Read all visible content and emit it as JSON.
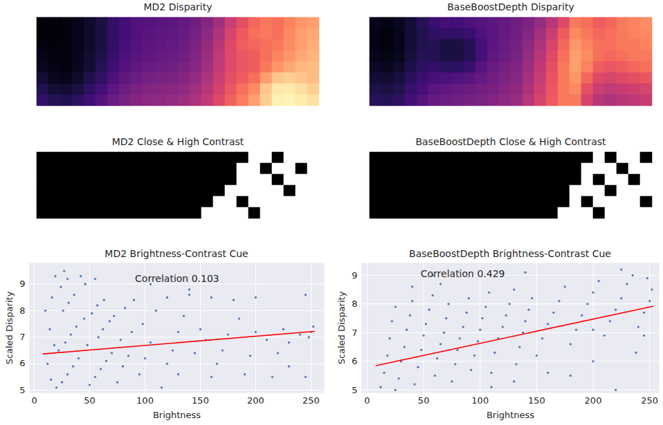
{
  "chart_data": [
    {
      "type": "heatmap",
      "title": "MD2 Disparity",
      "color": "magma",
      "zlim": [
        0,
        1
      ],
      "tick_labels": false,
      "z": [
        [
          0.02,
          0.02,
          0.03,
          0.05,
          0.08,
          0.12,
          0.18,
          0.22,
          0.25,
          0.26,
          0.27,
          0.28,
          0.3,
          0.33,
          0.38,
          0.45,
          0.55,
          0.62,
          0.68,
          0.72,
          0.7,
          0.74,
          0.78,
          0.8
        ],
        [
          0.02,
          0.02,
          0.03,
          0.05,
          0.08,
          0.12,
          0.18,
          0.22,
          0.25,
          0.27,
          0.28,
          0.29,
          0.31,
          0.34,
          0.4,
          0.48,
          0.58,
          0.65,
          0.7,
          0.72,
          0.7,
          0.75,
          0.8,
          0.82
        ],
        [
          0.03,
          0.02,
          0.03,
          0.05,
          0.08,
          0.12,
          0.18,
          0.23,
          0.26,
          0.28,
          0.29,
          0.3,
          0.32,
          0.36,
          0.42,
          0.5,
          0.6,
          0.66,
          0.68,
          0.7,
          0.72,
          0.76,
          0.8,
          0.83
        ],
        [
          0.04,
          0.03,
          0.03,
          0.05,
          0.09,
          0.13,
          0.19,
          0.24,
          0.27,
          0.29,
          0.3,
          0.31,
          0.33,
          0.37,
          0.43,
          0.52,
          0.6,
          0.64,
          0.66,
          0.7,
          0.74,
          0.78,
          0.82,
          0.84
        ],
        [
          0.06,
          0.04,
          0.03,
          0.06,
          0.1,
          0.15,
          0.21,
          0.26,
          0.29,
          0.31,
          0.32,
          0.33,
          0.35,
          0.39,
          0.45,
          0.53,
          0.6,
          0.64,
          0.66,
          0.72,
          0.78,
          0.82,
          0.85,
          0.86
        ],
        [
          0.1,
          0.06,
          0.05,
          0.08,
          0.13,
          0.18,
          0.24,
          0.29,
          0.32,
          0.34,
          0.35,
          0.36,
          0.38,
          0.42,
          0.48,
          0.55,
          0.62,
          0.66,
          0.7,
          0.8,
          0.88,
          0.9,
          0.88,
          0.86
        ],
        [
          0.14,
          0.1,
          0.09,
          0.12,
          0.17,
          0.22,
          0.28,
          0.32,
          0.35,
          0.37,
          0.38,
          0.39,
          0.41,
          0.45,
          0.5,
          0.57,
          0.64,
          0.7,
          0.76,
          0.88,
          0.95,
          0.96,
          0.93,
          0.9
        ],
        [
          0.18,
          0.15,
          0.14,
          0.17,
          0.21,
          0.26,
          0.31,
          0.35,
          0.38,
          0.4,
          0.41,
          0.42,
          0.44,
          0.48,
          0.53,
          0.6,
          0.67,
          0.73,
          0.8,
          0.9,
          0.97,
          0.98,
          0.96,
          0.94
        ]
      ]
    },
    {
      "type": "heatmap",
      "title": "BaseBoostDepth Disparity",
      "color": "magma",
      "zlim": [
        0,
        1
      ],
      "tick_labels": false,
      "z": [
        [
          0.05,
          0.04,
          0.06,
          0.1,
          0.15,
          0.2,
          0.22,
          0.22,
          0.24,
          0.26,
          0.28,
          0.3,
          0.33,
          0.36,
          0.42,
          0.5,
          0.6,
          0.72,
          0.7,
          0.66,
          0.68,
          0.72,
          0.74,
          0.76
        ],
        [
          0.04,
          0.03,
          0.05,
          0.1,
          0.14,
          0.17,
          0.18,
          0.18,
          0.2,
          0.24,
          0.28,
          0.3,
          0.33,
          0.38,
          0.45,
          0.55,
          0.65,
          0.75,
          0.72,
          0.68,
          0.7,
          0.72,
          0.74,
          0.75
        ],
        [
          0.04,
          0.03,
          0.05,
          0.1,
          0.14,
          0.15,
          0.12,
          0.12,
          0.15,
          0.22,
          0.28,
          0.31,
          0.34,
          0.4,
          0.48,
          0.58,
          0.68,
          0.78,
          0.74,
          0.7,
          0.7,
          0.72,
          0.72,
          0.74
        ],
        [
          0.05,
          0.04,
          0.06,
          0.11,
          0.15,
          0.15,
          0.12,
          0.12,
          0.15,
          0.23,
          0.29,
          0.32,
          0.35,
          0.42,
          0.5,
          0.6,
          0.7,
          0.8,
          0.76,
          0.7,
          0.68,
          0.7,
          0.72,
          0.72
        ],
        [
          0.07,
          0.06,
          0.08,
          0.13,
          0.17,
          0.18,
          0.17,
          0.17,
          0.2,
          0.26,
          0.31,
          0.34,
          0.37,
          0.44,
          0.52,
          0.62,
          0.72,
          0.8,
          0.74,
          0.66,
          0.64,
          0.66,
          0.68,
          0.7
        ],
        [
          0.1,
          0.09,
          0.11,
          0.16,
          0.2,
          0.23,
          0.24,
          0.25,
          0.27,
          0.3,
          0.33,
          0.36,
          0.39,
          0.46,
          0.54,
          0.63,
          0.72,
          0.78,
          0.68,
          0.6,
          0.58,
          0.6,
          0.62,
          0.64
        ],
        [
          0.13,
          0.12,
          0.14,
          0.19,
          0.23,
          0.27,
          0.29,
          0.3,
          0.31,
          0.33,
          0.35,
          0.38,
          0.41,
          0.48,
          0.56,
          0.64,
          0.72,
          0.75,
          0.62,
          0.55,
          0.52,
          0.54,
          0.56,
          0.58
        ],
        [
          0.16,
          0.15,
          0.17,
          0.22,
          0.26,
          0.3,
          0.32,
          0.33,
          0.34,
          0.36,
          0.38,
          0.4,
          0.43,
          0.5,
          0.58,
          0.65,
          0.72,
          0.72,
          0.58,
          0.5,
          0.48,
          0.5,
          0.52,
          0.54
        ]
      ]
    },
    {
      "type": "heatmap",
      "title": "MD2 Close & High Contrast",
      "colors": [
        "#000000",
        "#ffffff"
      ],
      "zlim": [
        0,
        1
      ],
      "tick_labels": false,
      "z": [
        [
          0,
          0,
          0,
          0,
          0,
          0,
          0,
          0,
          0,
          0,
          0,
          0,
          0,
          0,
          0,
          0,
          0,
          0,
          1,
          1,
          0,
          1,
          1,
          1
        ],
        [
          0,
          0,
          0,
          0,
          0,
          0,
          0,
          0,
          0,
          0,
          0,
          0,
          0,
          0,
          0,
          0,
          0,
          1,
          1,
          0,
          1,
          1,
          0,
          1
        ],
        [
          0,
          0,
          0,
          0,
          0,
          0,
          0,
          0,
          0,
          0,
          0,
          0,
          0,
          0,
          0,
          0,
          0,
          1,
          1,
          1,
          0,
          1,
          1,
          1
        ],
        [
          0,
          0,
          0,
          0,
          0,
          0,
          0,
          0,
          0,
          0,
          0,
          0,
          0,
          0,
          0,
          0,
          1,
          1,
          1,
          1,
          1,
          0,
          1,
          1
        ],
        [
          0,
          0,
          0,
          0,
          0,
          0,
          0,
          0,
          0,
          0,
          0,
          0,
          0,
          0,
          0,
          1,
          1,
          0,
          1,
          1,
          1,
          1,
          1,
          1
        ],
        [
          0,
          0,
          0,
          0,
          0,
          0,
          0,
          0,
          0,
          0,
          0,
          0,
          0,
          0,
          1,
          1,
          1,
          1,
          0,
          1,
          1,
          1,
          1,
          1
        ]
      ]
    },
    {
      "type": "heatmap",
      "title": "BaseBoostDepth Close & High Contrast",
      "colors": [
        "#000000",
        "#ffffff"
      ],
      "zlim": [
        0,
        1
      ],
      "tick_labels": false,
      "z": [
        [
          0,
          0,
          0,
          0,
          0,
          0,
          0,
          0,
          0,
          0,
          0,
          0,
          0,
          0,
          0,
          0,
          0,
          0,
          0,
          1,
          0,
          1,
          1,
          0
        ],
        [
          0,
          0,
          0,
          0,
          0,
          0,
          0,
          0,
          0,
          0,
          0,
          0,
          0,
          0,
          0,
          0,
          0,
          0,
          1,
          1,
          1,
          0,
          1,
          1
        ],
        [
          0,
          0,
          0,
          0,
          0,
          0,
          0,
          0,
          0,
          0,
          0,
          0,
          0,
          0,
          0,
          0,
          0,
          0,
          1,
          0,
          1,
          1,
          0,
          1
        ],
        [
          0,
          0,
          0,
          0,
          0,
          0,
          0,
          0,
          0,
          0,
          0,
          0,
          0,
          0,
          0,
          0,
          0,
          1,
          1,
          1,
          0,
          1,
          1,
          1
        ],
        [
          0,
          0,
          0,
          0,
          0,
          0,
          0,
          0,
          0,
          0,
          0,
          0,
          0,
          0,
          0,
          0,
          0,
          1,
          0,
          1,
          1,
          1,
          1,
          0
        ],
        [
          0,
          0,
          0,
          0,
          0,
          0,
          0,
          0,
          0,
          0,
          0,
          0,
          0,
          0,
          0,
          0,
          1,
          1,
          1,
          0,
          1,
          1,
          1,
          1
        ]
      ]
    },
    {
      "type": "scatter",
      "title": "MD2 Brightness-Contrast Cue",
      "x_label": "Brightness",
      "y_label": "Scaled Disparity",
      "xlim": [
        -4.4,
        261.9
      ],
      "ylim": [
        4.9,
        9.8
      ],
      "xticks": [
        0,
        50,
        100,
        150,
        200,
        250
      ],
      "yticks": [
        5,
        6,
        7,
        8,
        9
      ],
      "grid": true,
      "series": [
        {
          "type": "scatter",
          "color": "#4c72b0",
          "x": [
            20,
            25,
            30,
            35,
            40,
            22,
            28,
            33,
            38,
            45,
            26,
            31,
            36,
            24,
            30,
            27,
            50,
            55,
            60,
            65,
            70,
            48,
            58,
            62,
            68,
            52,
            57,
            63,
            46,
            55,
            42,
            75,
            80,
            85,
            78,
            88,
            72,
            82,
            90,
            15,
            12,
            18,
            14,
            10,
            16,
            19,
            95,
            100,
            105,
            98,
            110,
            120,
            140,
            160,
            180,
            200,
            245,
            130,
            150,
            175,
            200,
            225,
            250,
            252,
            248,
            240,
            125,
            145,
            170,
            195,
            220,
            130,
            160,
            190,
            215,
            245,
            115,
            135,
            155,
            185,
            210,
            230,
            120,
            165,
            230,
            105,
            140
          ],
          "y": [
            5.1,
            5.3,
            5.6,
            5.9,
            6.2,
            6.5,
            6.8,
            7.1,
            7.4,
            7.7,
            8.0,
            8.3,
            8.6,
            8.9,
            9.2,
            9.5,
            5.2,
            5.5,
            5.8,
            6.1,
            6.4,
            6.7,
            7.0,
            7.3,
            7.6,
            7.9,
            8.2,
            8.4,
            9.0,
            9.2,
            9.3,
            5.3,
            5.9,
            6.3,
            6.9,
            7.2,
            7.8,
            8.1,
            8.4,
            5.4,
            6.0,
            6.7,
            7.3,
            8.0,
            8.5,
            9.3,
            5.6,
            6.2,
            6.8,
            7.5,
            8.0,
            8.5,
            8.6,
            8.5,
            8.4,
            8.5,
            8.6,
            7.2,
            7.3,
            7.1,
            7.2,
            7.3,
            7.2,
            7.4,
            7.0,
            7.1,
            6.5,
            6.4,
            6.5,
            6.3,
            6.4,
            5.6,
            5.5,
            5.6,
            5.5,
            5.5,
            5.1,
            7.8,
            6.9,
            7.7,
            6.9,
            6.8,
            6.0,
            6.0,
            5.9,
            9.0,
            8.8
          ]
        },
        {
          "type": "line",
          "color": "#ff0000",
          "x": [
            8,
            253
          ],
          "y": [
            6.37,
            7.22
          ]
        }
      ],
      "annotations": [
        {
          "text": "Correlation 0.103",
          "x": 129,
          "y": 9.2
        }
      ]
    },
    {
      "type": "scatter",
      "title": "BaseBoostDepth Brightness-Contrast Cue",
      "x_label": "Brightness",
      "y_label": "Scaled Disparity",
      "xlim": [
        -4.9,
        258.5
      ],
      "ylim": [
        4.9,
        9.43
      ],
      "xticks": [
        0,
        50,
        100,
        150,
        200,
        250
      ],
      "yticks": [
        5,
        6,
        7,
        8,
        9
      ],
      "grid": true,
      "series": [
        {
          "type": "scatter",
          "color": "#4c72b0",
          "x": [
            12,
            15,
            18,
            20,
            22,
            25,
            28,
            30,
            33,
            35,
            38,
            40,
            42,
            45,
            48,
            50,
            52,
            55,
            58,
            60,
            62,
            65,
            68,
            70,
            72,
            75,
            78,
            80,
            82,
            85,
            88,
            90,
            92,
            95,
            98,
            100,
            102,
            105,
            108,
            110,
            113,
            116,
            120,
            123,
            126,
            130,
            132,
            135,
            138,
            140,
            143,
            146,
            150,
            155,
            160,
            165,
            170,
            175,
            180,
            185,
            190,
            195,
            200,
            205,
            210,
            215,
            220,
            225,
            230,
            235,
            240,
            245,
            250,
            252,
            248,
            180,
            200,
            220,
            160,
            238,
            245,
            58,
            65,
            40,
            25,
            110,
            130,
            140,
            225,
            200
          ],
          "y": [
            5.1,
            5.6,
            6.2,
            6.8,
            7.4,
            7.9,
            5.4,
            6.0,
            6.5,
            7.1,
            7.6,
            8.1,
            5.2,
            5.8,
            6.4,
            6.9,
            7.3,
            7.8,
            8.3,
            5.5,
            6.1,
            6.6,
            7.0,
            7.5,
            8.0,
            5.3,
            5.9,
            6.4,
            6.8,
            7.2,
            7.7,
            8.2,
            5.7,
            6.2,
            6.7,
            7.1,
            7.5,
            7.9,
            8.4,
            5.6,
            6.3,
            6.8,
            7.2,
            7.6,
            8.0,
            8.5,
            5.9,
            6.5,
            7.0,
            7.4,
            7.8,
            8.2,
            6.2,
            6.8,
            7.3,
            7.7,
            8.1,
            8.6,
            6.6,
            7.1,
            7.6,
            8.0,
            8.4,
            8.8,
            6.9,
            7.4,
            7.8,
            8.2,
            8.7,
            9.0,
            7.2,
            7.7,
            8.1,
            8.5,
            8.9,
            5.5,
            6.0,
            5.0,
            5.6,
            6.3,
            6.9,
            9.0,
            8.7,
            8.6,
            5.0,
            5.1,
            5.3,
            9.1,
            9.2,
            7.1
          ]
        },
        {
          "type": "line",
          "color": "#ff0000",
          "x": [
            8,
            253
          ],
          "y": [
            5.85,
            7.92
          ]
        }
      ],
      "annotations": [
        {
          "text": "Correlation 0.429",
          "x": 84.6,
          "y": 9.05
        }
      ]
    }
  ]
}
